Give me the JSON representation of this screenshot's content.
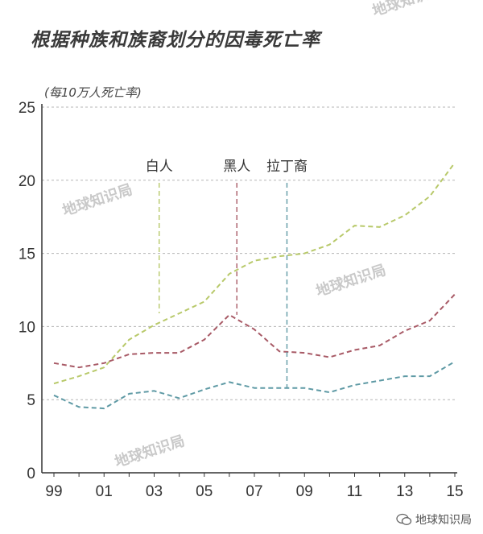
{
  "title": "根据种族和族裔划分的因毒死亡率",
  "unit_label": "(每10万人死亡率)",
  "footer_text": "地球知识局",
  "watermark_text": "地球知识局",
  "chart_data": {
    "type": "line",
    "x": [
      "99",
      "00",
      "01",
      "02",
      "03",
      "04",
      "05",
      "06",
      "07",
      "08",
      "09",
      "10",
      "11",
      "12",
      "13",
      "14",
      "15"
    ],
    "xtick_labels": [
      "99",
      "01",
      "03",
      "05",
      "07",
      "09",
      "11",
      "13",
      "15"
    ],
    "ylim": [
      0,
      25
    ],
    "yticks": [
      0,
      5,
      10,
      15,
      20,
      25
    ],
    "grid": true,
    "series": [
      {
        "name": "白人",
        "color": "#b8c96a",
        "values": [
          6.1,
          6.6,
          7.2,
          9.1,
          10.1,
          10.9,
          11.7,
          13.6,
          14.5,
          14.8,
          15.0,
          15.6,
          16.9,
          16.8,
          17.6,
          18.9,
          21.2
        ],
        "annotation_x": 4.2,
        "annotation_y": 10.9
      },
      {
        "name": "黑人",
        "color": "#a85a66",
        "values": [
          7.5,
          7.2,
          7.5,
          8.1,
          8.2,
          8.2,
          9.1,
          10.8,
          9.8,
          8.3,
          8.2,
          7.9,
          8.4,
          8.7,
          9.7,
          10.4,
          12.2
        ],
        "annotation_x": 7.3,
        "annotation_y": 10.8
      },
      {
        "name": "拉丁裔",
        "color": "#5f9aa5",
        "values": [
          5.3,
          4.5,
          4.4,
          5.4,
          5.6,
          5.1,
          5.7,
          6.2,
          5.8,
          5.8,
          5.8,
          5.5,
          6.0,
          6.3,
          6.6,
          6.6,
          7.6
        ],
        "annotation_x": 9.3,
        "annotation_y": 5.8
      }
    ]
  }
}
